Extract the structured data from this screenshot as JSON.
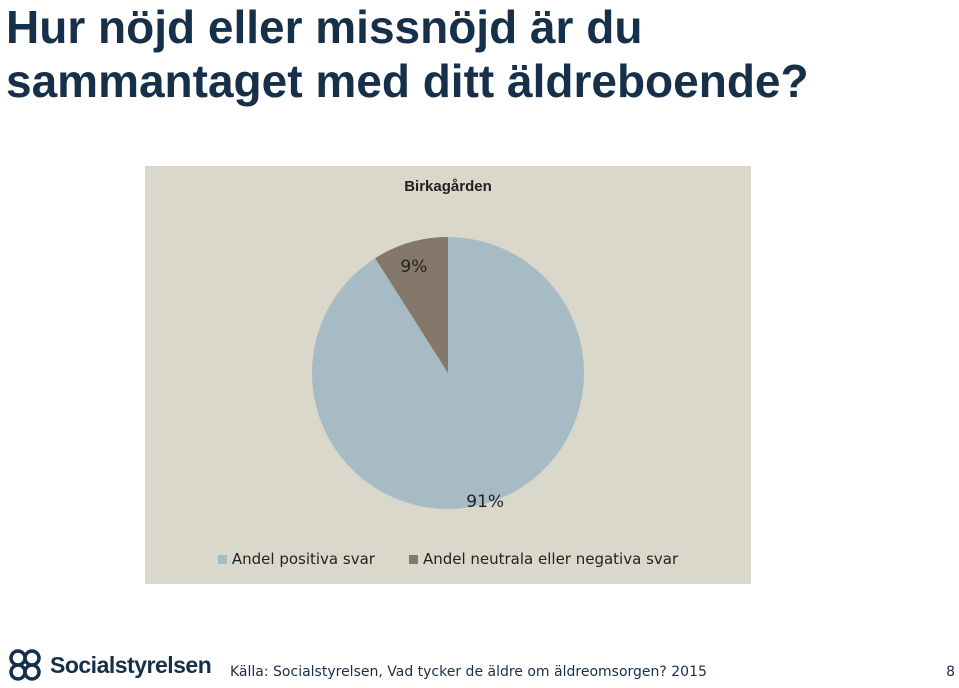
{
  "slide": {
    "title": "Hur nöjd eller missnöjd är du sammantaget med ditt äldreboende?",
    "source": "Källa: Socialstyrelsen, Vad tycker de äldre om äldreomsorgen? 2015",
    "page_number": "8",
    "logo_text": "Socialstyrelsen"
  },
  "colors": {
    "background": "#dad7cb",
    "title": "#17304a"
  },
  "chart_data": {
    "type": "pie",
    "title": "Birkagården",
    "legend_position": "bottom",
    "slices": [
      {
        "name": "Andel positiva svar",
        "value": 91,
        "label": "91%",
        "color": "#a7bbc5"
      },
      {
        "name": "Andel neutrala eller negativa svar",
        "value": 9,
        "label": "9%",
        "color": "#85776a"
      }
    ]
  }
}
